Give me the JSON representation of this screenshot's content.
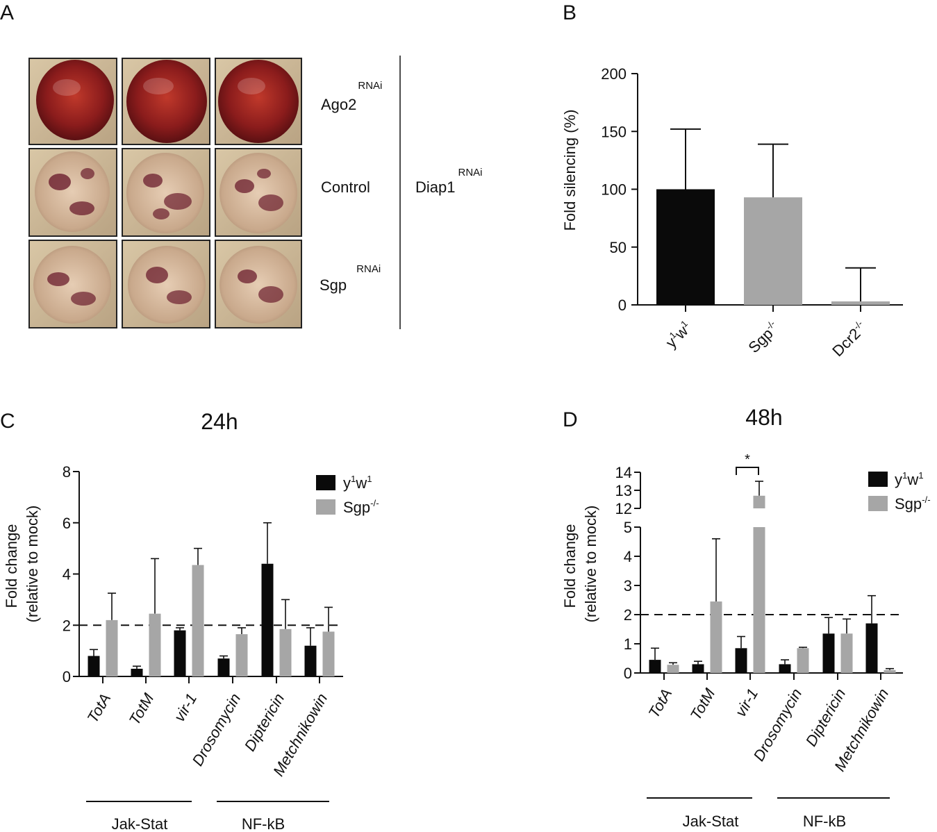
{
  "panels": {
    "a": "A",
    "b": "B",
    "c": "C",
    "d": "D"
  },
  "eye_panel": {
    "rows": [
      {
        "label": "Ago2",
        "sup": "RNAi"
      },
      {
        "label": "Control",
        "sup": ""
      },
      {
        "label": "Sgp",
        "sup": "RNAi"
      }
    ],
    "group_label": "Diap1",
    "group_sup": "RNAi",
    "colors": {
      "normal": "#8b1c1c",
      "rough": "#b88a6e",
      "rough_spot": "#6b1e2e",
      "frame": "#222222"
    }
  },
  "chart_data": [
    {
      "id": "B",
      "type": "bar",
      "title": "",
      "ylabel": "Fold silencing (%)",
      "ylim": [
        0,
        200
      ],
      "yticks": [
        0,
        50,
        100,
        150,
        200
      ],
      "categories": [
        "y1w1",
        "Sgp-/-",
        "Dcr2-/-"
      ],
      "category_labels": [
        {
          "base": "y",
          "sup1": "1",
          "mid": "w",
          "sup2": "1"
        },
        {
          "base": "Sgp",
          "sup1": "-/-",
          "mid": "",
          "sup2": ""
        },
        {
          "base": "Dcr2",
          "sup1": "-/-",
          "mid": "",
          "sup2": ""
        }
      ],
      "values": [
        100,
        93,
        3
      ],
      "errors": [
        52,
        46,
        29
      ],
      "colors": [
        "#0a0a0a",
        "#a6a6a6",
        "#a6a6a6"
      ]
    },
    {
      "id": "C",
      "type": "bar",
      "title": "24h",
      "ylabel": "Fold change",
      "ylabel2": "(relative to mock)",
      "ylim": [
        0,
        8
      ],
      "yticks": [
        0,
        2,
        4,
        6,
        8
      ],
      "threshold": 2,
      "categories": [
        "TotA",
        "TotM",
        "vir-1",
        "Drosomycin",
        "Diptericin",
        "Metchnikowin"
      ],
      "series": [
        {
          "name": "y1w1",
          "label": {
            "base": "y",
            "sup1": "1",
            "mid": "w",
            "sup2": "1"
          },
          "color": "#0a0a0a",
          "values": [
            0.8,
            0.3,
            1.8,
            0.7,
            4.4,
            1.2
          ],
          "errors": [
            0.25,
            0.1,
            0.1,
            0.1,
            1.6,
            0.7
          ]
        },
        {
          "name": "Sgp-/-",
          "label": {
            "base": "Sgp",
            "sup1": "-/-",
            "mid": "",
            "sup2": ""
          },
          "color": "#a6a6a6",
          "values": [
            2.2,
            2.45,
            4.35,
            1.65,
            1.85,
            1.75
          ],
          "errors": [
            1.05,
            2.15,
            0.65,
            0.25,
            1.15,
            0.95
          ]
        }
      ],
      "groups": [
        {
          "label": "Jak-Stat"
        },
        {
          "label": "NF-kB"
        }
      ]
    },
    {
      "id": "D",
      "type": "bar",
      "title": "48h",
      "ylabel": "Fold change",
      "ylabel2": "(relative to mock)",
      "ylim": [
        0,
        14
      ],
      "axis_break": [
        5,
        12
      ],
      "yticks_low": [
        0,
        1,
        2,
        3,
        4,
        5
      ],
      "yticks_high": [
        12,
        13,
        14
      ],
      "threshold": 2,
      "categories": [
        "TotA",
        "TotM",
        "vir-1",
        "Drosomycin",
        "Diptericin",
        "Metchnikowin"
      ],
      "series": [
        {
          "name": "y1w1",
          "label": {
            "base": "y",
            "sup1": "1",
            "mid": "w",
            "sup2": "1"
          },
          "color": "#0a0a0a",
          "values": [
            0.45,
            0.3,
            0.85,
            0.3,
            1.35,
            1.7
          ],
          "errors": [
            0.4,
            0.1,
            0.4,
            0.15,
            0.55,
            0.95
          ]
        },
        {
          "name": "Sgp-/-",
          "label": {
            "base": "Sgp",
            "sup1": "-/-",
            "mid": "",
            "sup2": ""
          },
          "color": "#a6a6a6",
          "values": [
            0.28,
            2.45,
            12.7,
            0.85,
            1.35,
            0.1
          ],
          "errors": [
            0.07,
            2.15,
            0.8,
            0.03,
            0.5,
            0.05
          ]
        }
      ],
      "significance": {
        "category": "vir-1",
        "label": "*"
      },
      "groups": [
        {
          "label": "Jak-Stat"
        },
        {
          "label": "NF-kB"
        }
      ]
    }
  ]
}
